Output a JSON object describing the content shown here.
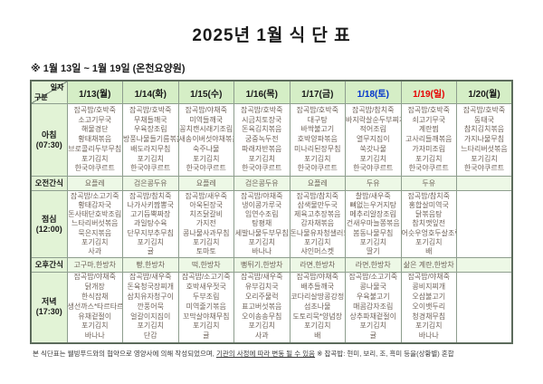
{
  "title": "2025년 1월 식 단 표",
  "subtitle": "※  1월 13일 ~ 1월 19일 (온천요양원)",
  "colors": {
    "header_green": "#d5eec6",
    "label_green": "#e2f3d6",
    "snack_row_green": "#edf8e6",
    "saturday_blue": "#0033cc",
    "sunday_red": "#e60000",
    "menu_text": "#6f635a"
  },
  "header": {
    "corner_top": "일자",
    "corner_bottom": "구분",
    "dates": [
      {
        "label": "1/13(월)",
        "color": "#1a1a1a"
      },
      {
        "label": "1/14(화)",
        "color": "#1a1a1a"
      },
      {
        "label": "1/15(수)",
        "color": "#1a1a1a"
      },
      {
        "label": "1/16(목)",
        "color": "#1a1a1a"
      },
      {
        "label": "1/17(금)",
        "color": "#1a1a1a"
      },
      {
        "label": "1/18(토)",
        "color": "#0033cc"
      },
      {
        "label": "1/19(일)",
        "color": "#e60000"
      },
      {
        "label": "1/20(월)",
        "color": "#1a1a1a"
      }
    ]
  },
  "rows": [
    {
      "key": "breakfast",
      "label": "아침",
      "sublabel": "(07:30)",
      "type": "meal",
      "cells": [
        [
          "잡곡밥/호박죽",
          "소고기무국",
          "해물경단",
          "황태채볶음",
          "브로콜리두부무침",
          "포기김치",
          "한국야쿠르트"
        ],
        [
          "잡곡밥/호박죽",
          "무채들깨국",
          "우육장조림",
          "방풍나물들기름볶음",
          "배도라지무침",
          "포기김치",
          "한국야쿠르트"
        ],
        [
          "잡곡밥/야채죽",
          "미역들깨국",
          "꽁치캔시래기조림",
          "새송이버섯야채볶음",
          "숙주나물",
          "포기김치",
          "한국야쿠르트"
        ],
        [
          "잡곡밥/호박죽",
          "시금치토장국",
          "돈육김치볶음",
          "궁중녹두전",
          "파래자반볶음",
          "포기김치",
          "한국야쿠르트"
        ],
        [
          "잡곡밥/호박죽",
          "대구탕",
          "바싹불고기",
          "호박양파볶음",
          "미나리된장무침",
          "포기김치",
          "한국야쿠르트"
        ],
        [
          "잡곡밥/참치죽",
          "바지락살순두부찌개",
          "적어조림",
          "열무지짐이",
          "쑥갓나물",
          "포기김치",
          "한국야쿠르트"
        ],
        [
          "잡곡밥/호박죽",
          "쇠고기무국",
          "계란찜",
          "고사리들깨볶음",
          "가자미조림",
          "포기김치",
          "한국야쿠르트"
        ],
        [
          "잡곡밥/호박죽",
          "동태국",
          "참치김치볶음",
          "가지나물무침",
          "느타리버섯볶음",
          "포기김치",
          "한국야쿠르트"
        ]
      ]
    },
    {
      "key": "am_snack",
      "label": "오전간식",
      "sublabel": "",
      "type": "snack",
      "cells": [
        "요플레",
        "검은콩두유",
        "요플레",
        "검은콩두유",
        "요플레",
        "두유",
        "두유",
        ""
      ]
    },
    {
      "key": "lunch",
      "label": "점심",
      "sublabel": "(12:00)",
      "type": "meal",
      "cells": [
        [
          "잡곡밥/소고기죽",
          "황태감자국",
          "돈사태단호박조림",
          "느타리버섯볶음",
          "묵은지볶음",
          "포기김치",
          "사과"
        ],
        [
          "잡곡밥/참치죽",
          "나가사키짬뽕국",
          "고기듬뿍짜장",
          "과일탕수육",
          "단무지부추무침",
          "포기김치",
          "귤"
        ],
        [
          "잡곡밥/새우죽",
          "아욱된장국",
          "치즈닭갈비",
          "가지전",
          "콩나물사과무침",
          "포기김치",
          "토마토"
        ],
        [
          "잡곡밥/야채죽",
          "냉이콩가루국",
          "임연수조림",
          "탕평채",
          "세발나물두부무침",
          "포기김치",
          "바나나"
        ],
        [
          "잡곡밥/참치죽",
          "삼색물만두국",
          "제육고추장볶음",
          "감자채볶음",
          "돈나물유자청샐러드",
          "포기김치",
          "샤인머스켓"
        ],
        [
          "찰밥/새우죽",
          "뼈없는우거지탕",
          "메추리알장조림",
          "건새우마늘쫑볶음",
          "봄동나물무침",
          "포기김치",
          "딸기"
        ],
        [
          "잡곡밥/참치죽",
          "홍합살미역국",
          "닭볶음탕",
          "참치깻잎전",
          "어슷우엉호두살조림",
          "포기김치",
          "배"
        ],
        []
      ]
    },
    {
      "key": "pm_snack",
      "label": "오후간식",
      "sublabel": "",
      "type": "snack",
      "cells": [
        "고구마,한방차",
        "빵,한방차",
        "떡,한방차",
        "뻥튀기,한방차",
        "라면,한방차",
        "라면,한방차",
        "삶은 계란,한방차",
        ""
      ]
    },
    {
      "key": "dinner",
      "label": "저녁",
      "sublabel": "(17:30)",
      "type": "meal",
      "cells": [
        [
          "잡곡밥/야채죽",
          "닭개장",
          "한식잡채",
          "생선까스*타르타르드레싱",
          "유채겉절이",
          "포기김치",
          "바나나"
        ],
        [
          "잡곡밥/새우죽",
          "돈육청국장찌개",
          "삼치유자청구이",
          "깐풍어묵",
          "얼갈이지짐이",
          "포기김치",
          "단감"
        ],
        [
          "잡곡밥/소고기죽",
          "호박새우젓국",
          "두부조림",
          "미역줄기볶음",
          "꼬막살야채무침",
          "포기김치",
          "귤"
        ],
        [
          "잡곡밥/새우죽",
          "유부김치국",
          "오리주물럭",
          "표고버섯볶음",
          "오이송송무침",
          "포기김치",
          "사과"
        ],
        [
          "잡곡밥/야채죽",
          "배추들깨국",
          "코다리살땅콩강정",
          "섬초나물",
          "도토리묵*양념장",
          "포기김치",
          "배"
        ],
        [
          "잡곡밥/소고기죽",
          "콩나물국",
          "우육불고기",
          "매콤감자조림",
          "상추파채겉절이",
          "포기김치",
          "귤"
        ],
        [
          "잡곡밥/야채죽",
          "콩비지찌개",
          "오삼불고기",
          "오이뱃두리",
          "청경채무침",
          "포기김치",
          "바나나"
        ],
        []
      ]
    }
  ],
  "footer": {
    "part1": "본 식단표는 웰빙푸드와의 협약으로 영양사에 의해 작성되었으며, ",
    "part2": "기관의 사정에 따라 변동 될 수 있음",
    "part3": " ※ 잡곡밥: 현미, 보리, 조, 흑미 등을(상황별) 혼합"
  }
}
